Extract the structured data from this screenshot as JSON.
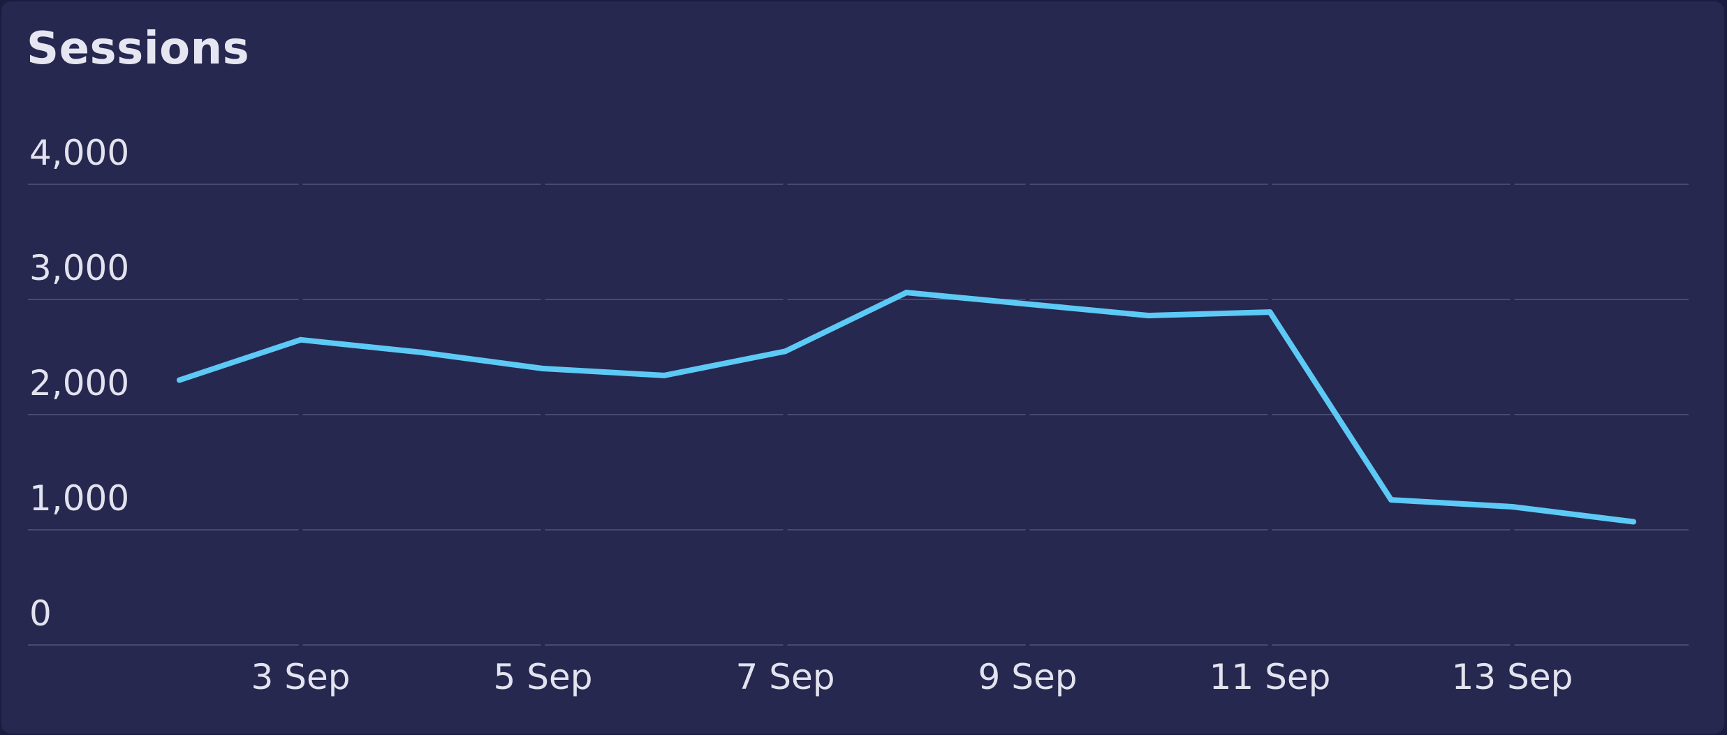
{
  "card": {
    "title": "Sessions"
  },
  "colors": {
    "background": "#262850",
    "line": "#5ccaf5",
    "grid": "#484a70",
    "text": "#e3e3ef"
  },
  "chart_data": {
    "type": "line",
    "title": "Sessions",
    "xlabel": "",
    "ylabel": "",
    "x": [
      "2 Sep",
      "3 Sep",
      "4 Sep",
      "5 Sep",
      "6 Sep",
      "7 Sep",
      "8 Sep",
      "9 Sep",
      "10 Sep",
      "11 Sep",
      "12 Sep",
      "13 Sep",
      "14 Sep"
    ],
    "series": [
      {
        "values": [
          2300,
          2650,
          2540,
          2400,
          2340,
          2550,
          3060,
          2960,
          2860,
          2890,
          1260,
          1200,
          1070
        ]
      }
    ],
    "x_tick_labels": [
      "3 Sep",
      "5 Sep",
      "7 Sep",
      "9 Sep",
      "11 Sep",
      "13 Sep"
    ],
    "y_ticks": [
      0,
      1000,
      2000,
      3000,
      4000
    ],
    "y_tick_labels": [
      "0",
      "1,000",
      "2,000",
      "3,000",
      "4,000"
    ],
    "ylim": [
      0,
      4000
    ],
    "grid": true,
    "legend": false
  }
}
